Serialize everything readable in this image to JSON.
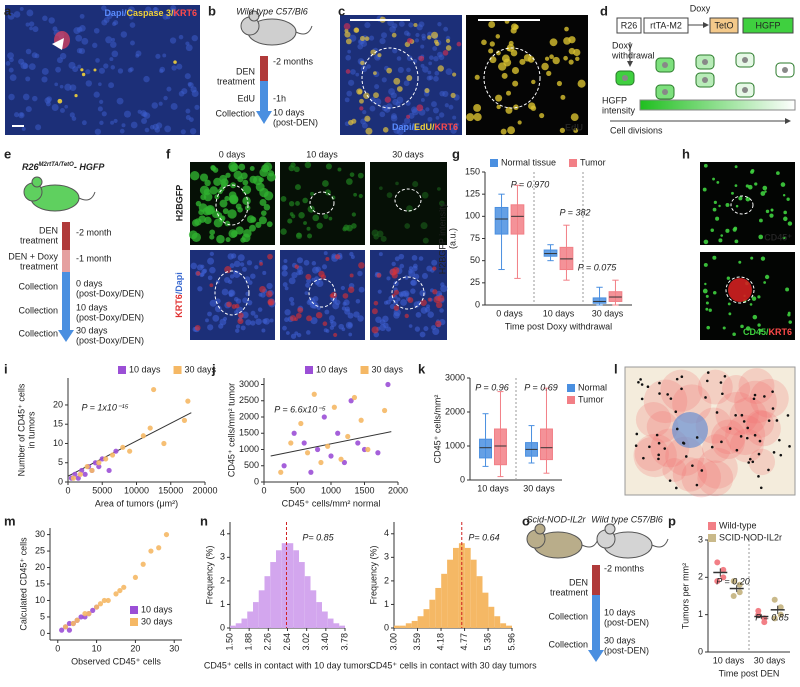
{
  "panel_labels": [
    "a",
    "b",
    "c",
    "d",
    "e",
    "f",
    "g",
    "h",
    "i",
    "j",
    "k",
    "l",
    "m",
    "n",
    "o",
    "p"
  ],
  "panel_a": {
    "stain": [
      "Dapi/",
      "Caspase 3/",
      "KRT6"
    ]
  },
  "panel_b": {
    "strain": "Wild type C57/Bl6",
    "treatment": [
      "DEN",
      "treatment"
    ],
    "edu": "EdU",
    "collection": "Collection",
    "time_treatment": "-2 months",
    "time_edu": "-1h",
    "time_collection": [
      "10 days",
      "(post-DEN)"
    ]
  },
  "panel_c": {
    "stain": [
      "Dapi/",
      "EdU/",
      "KRT6"
    ],
    "stain_right": "EdU"
  },
  "panel_d": {
    "doxy": "Doxy",
    "construct": [
      "R26",
      "rtTA-M2",
      "TetO",
      "HGFP"
    ],
    "withdrawal": [
      "Doxy",
      "withdrawal"
    ],
    "intensity": [
      "HGFP",
      "intensity"
    ],
    "divisions": "Cell divisions"
  },
  "panel_e": {
    "genotype": [
      "R26",
      "M2rtTA/TetO",
      "- HGFP"
    ],
    "steps": [
      {
        "label": [
          "DEN",
          "treatment"
        ],
        "time": [
          "-2 month"
        ]
      },
      {
        "label": [
          "DEN + Doxy",
          "treatment"
        ],
        "time": [
          "-1 month"
        ]
      },
      {
        "label": [
          "Collection"
        ],
        "time": [
          "0 days",
          "(post-Doxy/DEN)"
        ]
      },
      {
        "label": [
          "Collection"
        ],
        "time": [
          "10 days",
          "(post-Doxy/DEN)"
        ]
      },
      {
        "label": [
          "Collection"
        ],
        "time": [
          "30 days",
          "(post-Doxy/DEN)"
        ]
      }
    ]
  },
  "panel_f": {
    "columns": [
      "0 days",
      "10 days",
      "30 days"
    ],
    "top": "H2BGFP",
    "bottom": [
      "KRT6",
      "/Dapi"
    ]
  },
  "panel_h": {
    "top": "CD45⁺",
    "bottom": [
      "CD45/",
      "KRT6"
    ]
  },
  "panel_o": {
    "strains": [
      "Scid-NOD-IL2r",
      "Wild type C57/Bl6"
    ],
    "time_treatment": "-2 months",
    "treatment": [
      "DEN",
      "treatment"
    ],
    "collections": [
      {
        "label": "Collection",
        "time": [
          "10 days",
          "(post-DEN)"
        ]
      },
      {
        "label": "Collection",
        "time": [
          "30 days",
          "(post-DEN)"
        ]
      }
    ]
  },
  "chart_data": [
    {
      "type": "box",
      "y_label": [
        "H2BGFP intensity",
        "(a.u.)"
      ],
      "x_label": "Time post Doxy withdrawal",
      "categories": [
        "0 days",
        "10 days",
        "30 days"
      ],
      "ylim": [
        0,
        150
      ],
      "yticks": [
        0,
        25,
        50,
        75,
        100,
        125,
        150
      ],
      "series": [
        {
          "name": "Normal tissue",
          "color": "#4a8fe0",
          "boxes": [
            {
              "min": 40,
              "q1": 80,
              "median": 97,
              "q3": 110,
              "max": 125
            },
            {
              "min": 50,
              "q1": 55,
              "median": 58,
              "q3": 62,
              "max": 68
            },
            {
              "min": 0,
              "q1": 2,
              "median": 4,
              "q3": 8,
              "max": 20
            }
          ]
        },
        {
          "name": "Tumor",
          "color": "#f27f86",
          "boxes": [
            {
              "min": 30,
              "q1": 80,
              "median": 100,
              "q3": 113,
              "max": 135
            },
            {
              "min": 28,
              "q1": 40,
              "median": 52,
              "q3": 65,
              "max": 90
            },
            {
              "min": 0,
              "q1": 4,
              "median": 9,
              "q3": 15,
              "max": 28
            }
          ]
        }
      ],
      "annotations": [
        "P = 0.970",
        "P = 382",
        "P = 0.075"
      ]
    },
    {
      "type": "scatter",
      "y_label": [
        "Number of CD45⁺ cells",
        "in tumors"
      ],
      "x_label": "Area of tumors (μm²)",
      "xlim": [
        0,
        20000
      ],
      "xticks": [
        0,
        5000,
        10000,
        15000,
        20000
      ],
      "ylim": [
        0,
        27
      ],
      "yticks": [
        0,
        5,
        10,
        15,
        20
      ],
      "series": [
        {
          "name": "10 days",
          "color": "#9b4fd6",
          "x": [
            500,
            1000,
            1500,
            2000,
            2500,
            3000,
            3500,
            4000,
            4500,
            5000,
            6000,
            7000
          ],
          "y": [
            1,
            2,
            1,
            3,
            2,
            4,
            3,
            5,
            4,
            6,
            3,
            8
          ]
        },
        {
          "name": "30 days",
          "color": "#f5b865",
          "x": [
            800,
            1800,
            2800,
            3500,
            4500,
            5500,
            6500,
            8000,
            9000,
            11000,
            12000,
            12500,
            14000,
            17000,
            17500
          ],
          "y": [
            1,
            2,
            4,
            3,
            5,
            6,
            7,
            9,
            8,
            12,
            14,
            24,
            10,
            16,
            21
          ]
        }
      ],
      "trend": {
        "x": [
          0,
          18000
        ],
        "y": [
          1.5,
          18
        ]
      },
      "annotations": [
        "P = 1x10⁻¹⁵"
      ]
    },
    {
      "type": "scatter",
      "y_label": [
        "CD45⁺ cells/mm² tumor"
      ],
      "x_label": "CD45⁺ cells/mm² normal",
      "xlim": [
        0,
        2000
      ],
      "xticks": [
        0,
        500,
        1000,
        1500,
        2000
      ],
      "ylim": [
        0,
        3200
      ],
      "yticks": [
        0,
        500,
        1000,
        1500,
        2000,
        2500,
        3000
      ],
      "series": [
        {
          "name": "10 days",
          "color": "#9b4fd6",
          "x": [
            300,
            450,
            600,
            700,
            800,
            900,
            1000,
            1100,
            1200,
            1300,
            1400,
            1500,
            1700,
            1850
          ],
          "y": [
            500,
            1500,
            1200,
            300,
            1000,
            2000,
            800,
            1500,
            600,
            2500,
            1200,
            1000,
            900,
            3000
          ]
        },
        {
          "name": "30 days",
          "color": "#f5b865",
          "x": [
            250,
            400,
            550,
            650,
            750,
            850,
            950,
            1050,
            1150,
            1250,
            1350,
            1450,
            1550,
            1800
          ],
          "y": [
            300,
            1200,
            1800,
            900,
            2700,
            600,
            1100,
            2300,
            700,
            1400,
            2600,
            1900,
            1000,
            2200
          ]
        }
      ],
      "trend": {
        "x": [
          100,
          1900
        ],
        "y": [
          800,
          1550
        ]
      },
      "annotations": [
        "P = 6.6x10⁻⁵"
      ]
    },
    {
      "type": "box",
      "y_label": [
        "CD45⁺ cells/mm²"
      ],
      "categories": [
        "10 days",
        "30 days"
      ],
      "ylim": [
        0,
        3000
      ],
      "yticks": [
        0,
        1000,
        2000,
        3000
      ],
      "series": [
        {
          "name": "Normal",
          "color": "#4a8fe0",
          "boxes": [
            {
              "min": 400,
              "q1": 650,
              "median": 950,
              "q3": 1200,
              "max": 1950
            },
            {
              "min": 500,
              "q1": 700,
              "median": 900,
              "q3": 1100,
              "max": 1600
            }
          ]
        },
        {
          "name": "Tumor",
          "color": "#f27f86",
          "boxes": [
            {
              "min": 100,
              "q1": 450,
              "median": 1000,
              "q3": 1500,
              "max": 2600
            },
            {
              "min": 200,
              "q1": 600,
              "median": 950,
              "q3": 1500,
              "max": 2700
            }
          ]
        }
      ],
      "annotations": [
        "P = 0.96",
        "P = 0.69"
      ]
    },
    {
      "type": "scatter",
      "y_label": [
        "Calculated CD45⁺ cells"
      ],
      "x_label": "Observed CD45⁺ cells",
      "xlim": [
        -2,
        32
      ],
      "xticks": [
        0,
        10,
        20,
        30
      ],
      "ylim": [
        -2,
        32
      ],
      "yticks": [
        0,
        5,
        10,
        15,
        20,
        25,
        30
      ],
      "series": [
        {
          "name": "10 days",
          "color": "#9b4fd6",
          "x": [
            1,
            2,
            3,
            3,
            4,
            5,
            6,
            7,
            8,
            9,
            10
          ],
          "y": [
            1,
            2,
            1,
            3,
            3,
            4,
            5,
            5,
            6,
            7,
            8
          ]
        },
        {
          "name": "30 days",
          "color": "#f5b865",
          "x": [
            2,
            4,
            5,
            7,
            8,
            10,
            11,
            12,
            13,
            15,
            16,
            17,
            20,
            22,
            24,
            26,
            28
          ],
          "y": [
            2,
            3,
            4,
            6,
            6,
            8,
            9,
            10,
            10,
            12,
            13,
            14,
            17,
            21,
            25,
            26,
            30
          ]
        }
      ]
    },
    {
      "type": "histogram",
      "y_label": [
        "Frequency (%)"
      ],
      "x_label": "CD45⁺ cells in contact with 10 day tumors",
      "color": "#d3a6ee",
      "bins": [
        1.5,
        1.614,
        1.728,
        1.842,
        1.956,
        2.07,
        2.184,
        2.298,
        2.412,
        2.526,
        2.64,
        2.754,
        2.868,
        2.982,
        3.096,
        3.21,
        3.324,
        3.438,
        3.552,
        3.666,
        3.78
      ],
      "counts": [
        0.1,
        0.2,
        0.4,
        0.7,
        1.1,
        1.6,
        2.2,
        2.8,
        3.3,
        3.6,
        3.6,
        3.3,
        2.8,
        2.2,
        1.6,
        1.1,
        0.7,
        0.4,
        0.2,
        0.1
      ],
      "xlim": [
        1.5,
        3.78
      ],
      "xticks": [
        {
          "value": 1.5,
          "label": "1.50"
        },
        1.88,
        2.26,
        2.64,
        3.02,
        {
          "value": 3.4,
          "label": "3.40"
        },
        3.78
      ],
      "ylim": [
        0,
        4.5
      ],
      "yticks": [
        0,
        1,
        2,
        3,
        4
      ],
      "reference_line": 2.62,
      "annotations": [
        "P= 0.85"
      ]
    },
    {
      "type": "histogram",
      "y_label": [
        "Frequency (%)"
      ],
      "x_label": "CD45⁺ cells in contact with 30 day tumors",
      "color": "#f5b865",
      "bins": [
        3.0,
        3.148,
        3.296,
        3.444,
        3.592,
        3.74,
        3.888,
        4.036,
        4.184,
        4.332,
        4.48,
        4.628,
        4.776,
        4.924,
        5.072,
        5.22,
        5.368,
        5.516,
        5.664,
        5.812,
        5.96
      ],
      "counts": [
        0.1,
        0.1,
        0.2,
        0.3,
        0.5,
        0.8,
        1.2,
        1.7,
        2.3,
        2.9,
        3.4,
        3.6,
        3.4,
        2.9,
        2.2,
        1.5,
        0.9,
        0.5,
        0.2,
        0.1
      ],
      "xlim": [
        3.0,
        5.96
      ],
      "xticks": [
        {
          "value": 3.0,
          "label": "3.00"
        },
        3.59,
        4.18,
        4.77,
        5.36,
        5.96
      ],
      "ylim": [
        0,
        4.5
      ],
      "yticks": [
        0,
        1,
        2,
        3,
        4
      ],
      "reference_line": 4.7,
      "annotations": [
        "P= 0.64"
      ]
    },
    {
      "type": "dot",
      "y_label": [
        "Tumors per mm²"
      ],
      "x_label": "Time post DEN",
      "categories": [
        "10 days",
        "30 days"
      ],
      "ylim": [
        0,
        3
      ],
      "yticks": [
        0,
        1,
        2,
        3
      ],
      "series": [
        {
          "name": "Wild-type",
          "color": "#f27f86",
          "points": [
            [
              2.4,
              2.2,
              1.9,
              2.0
            ],
            [
              1.1,
              0.9,
              1.0,
              0.8
            ]
          ],
          "mean": [
            2.13,
            0.95
          ],
          "sem": [
            0.11,
            0.06
          ]
        },
        {
          "name": "SCID-NOD-IL2r",
          "color": "#c9b98a",
          "points": [
            [
              1.9,
              1.6,
              1.5,
              1.8
            ],
            [
              1.4,
              1.0,
              0.9,
              1.2
            ]
          ],
          "mean": [
            1.7,
            1.13
          ],
          "sem": [
            0.09,
            0.11
          ]
        }
      ],
      "annotations": [
        "P = 0.20",
        "P = 0.85"
      ]
    }
  ]
}
